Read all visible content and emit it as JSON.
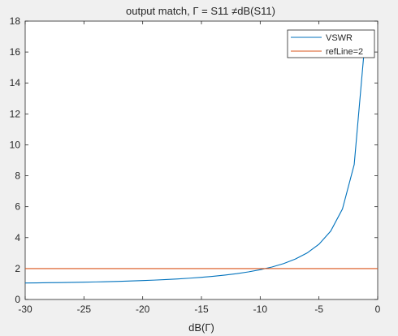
{
  "chart_data": {
    "type": "line",
    "title": "output match, Γ = S11 ≠dB(S11)",
    "xlabel": "dB(Γ)",
    "ylabel": "",
    "xlim": [
      -30,
      0
    ],
    "ylim": [
      0,
      18
    ],
    "xticks": [
      -30,
      -25,
      -20,
      -15,
      -10,
      -5,
      0
    ],
    "yticks": [
      0,
      2,
      4,
      6,
      8,
      10,
      12,
      14,
      16,
      18
    ],
    "grid": false,
    "legend_position": "top-right",
    "series": [
      {
        "name": "VSWR",
        "color": "#0072bd",
        "x": [
          -30,
          -29,
          -28,
          -27,
          -26,
          -25,
          -24,
          -23,
          -22,
          -21,
          -20,
          -19,
          -18,
          -17,
          -16,
          -15,
          -14,
          -13,
          -12,
          -11,
          -10,
          -9,
          -8,
          -7,
          -6,
          -5,
          -4,
          -3,
          -2,
          -1
        ],
        "y": [
          1.065,
          1.074,
          1.083,
          1.093,
          1.105,
          1.119,
          1.135,
          1.152,
          1.173,
          1.196,
          1.222,
          1.253,
          1.288,
          1.329,
          1.377,
          1.433,
          1.499,
          1.577,
          1.671,
          1.785,
          1.925,
          2.1,
          2.323,
          2.615,
          3.01,
          3.57,
          4.419,
          5.848,
          8.724,
          17.391
        ]
      },
      {
        "name": "refLine=2",
        "color": "#d95319",
        "x": [
          -30,
          0
        ],
        "y": [
          2,
          2
        ]
      }
    ]
  }
}
